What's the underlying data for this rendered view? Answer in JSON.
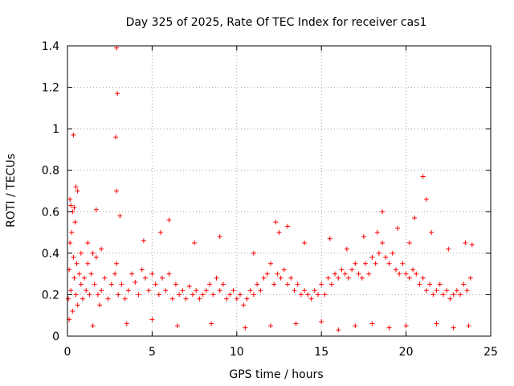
{
  "chart_data": {
    "type": "scatter",
    "title": "Day 325 of 2025, Rate Of TEC Index for receiver cas1",
    "xlabel": "GPS time / hours",
    "ylabel": "ROTI / TECUs",
    "xlim": [
      0,
      25
    ],
    "ylim": [
      0,
      1.4
    ],
    "xticks": [
      0,
      5,
      10,
      15,
      20,
      25
    ],
    "yticks": [
      0,
      0.2,
      0.4,
      0.6,
      0.8,
      1,
      1.2,
      1.4
    ],
    "xtick_labels": [
      "0",
      "5",
      "10",
      "15",
      "20",
      "25"
    ],
    "ytick_labels": [
      "0",
      "0.2",
      "0.4",
      "0.6",
      "0.8",
      "1",
      "1.2",
      "1.4"
    ],
    "grid": true,
    "marker": "+",
    "color": "#ff0000",
    "series": [
      {
        "x": [
          0.05,
          0.1,
          0.15,
          0.2,
          0.25,
          0.3,
          0.35,
          0.4,
          0.45,
          0.5,
          0.55,
          0.6,
          0.7,
          0.8,
          0.9,
          1.0,
          1.1,
          1.2,
          1.3,
          1.4,
          1.5,
          1.6,
          1.7,
          1.8,
          1.9,
          2.0,
          2.2,
          2.4,
          2.6,
          2.8,
          2.9,
          3.0,
          3.2,
          3.4,
          3.6,
          3.8,
          4.0,
          4.2,
          4.4,
          4.6,
          4.8,
          5.0,
          5.2,
          5.4,
          5.6,
          5.8,
          6.0,
          6.2,
          6.4,
          6.6,
          6.8,
          7.0,
          7.2,
          7.4,
          7.6,
          7.8,
          8.0,
          8.2,
          8.4,
          8.6,
          8.8,
          9.0,
          9.2,
          9.4,
          9.6,
          9.8,
          10.0,
          10.2,
          10.4,
          10.6,
          10.8,
          11.0,
          11.2,
          11.4,
          11.6,
          11.8,
          12.0,
          12.2,
          12.4,
          12.6,
          12.8,
          13.0,
          13.2,
          13.4,
          13.6,
          13.8,
          14.0,
          14.2,
          14.4,
          14.6,
          14.8,
          15.0,
          15.2,
          15.4,
          15.6,
          15.8,
          16.0,
          16.2,
          16.4,
          16.6,
          16.8,
          17.0,
          17.2,
          17.4,
          17.6,
          17.8,
          18.0,
          18.2,
          18.4,
          18.6,
          18.8,
          19.0,
          19.2,
          19.4,
          19.6,
          19.8,
          20.0,
          20.2,
          20.4,
          20.6,
          20.8,
          21.0,
          21.2,
          21.4,
          21.6,
          21.8,
          22.0,
          22.2,
          22.4,
          22.6,
          22.8,
          23.0,
          23.2,
          23.4,
          23.6,
          23.8,
          0.35,
          0.5,
          2.9,
          2.95,
          2.85,
          2.9,
          21.0,
          21.2,
          0.15,
          0.3,
          0.6,
          1.7,
          6.0,
          12.3,
          13.0,
          18.6,
          20.5,
          0.2,
          0.4,
          0.8,
          1.2,
          2.0,
          3.1,
          4.5,
          5.5,
          7.5,
          9.0,
          11.0,
          12.5,
          14.0,
          15.5,
          16.5,
          17.5,
          18.3,
          19.5,
          20.2,
          21.5,
          22.5,
          23.5,
          23.9,
          0.1,
          1.5,
          3.5,
          5.0,
          6.5,
          8.5,
          10.5,
          12.0,
          13.5,
          15.0,
          16.0,
          17.0,
          18.0,
          19.0,
          20.0,
          21.8,
          22.8,
          23.7
        ],
        "y": [
          0.18,
          0.32,
          0.45,
          0.22,
          0.5,
          0.12,
          0.38,
          0.28,
          0.55,
          0.2,
          0.35,
          0.15,
          0.3,
          0.25,
          0.18,
          0.28,
          0.22,
          0.35,
          0.2,
          0.3,
          0.4,
          0.25,
          0.38,
          0.2,
          0.15,
          0.22,
          0.28,
          0.18,
          0.25,
          0.3,
          0.35,
          0.2,
          0.25,
          0.18,
          0.22,
          0.3,
          0.26,
          0.2,
          0.32,
          0.28,
          0.22,
          0.3,
          0.25,
          0.2,
          0.28,
          0.22,
          0.3,
          0.18,
          0.25,
          0.2,
          0.22,
          0.18,
          0.24,
          0.2,
          0.22,
          0.18,
          0.2,
          0.22,
          0.25,
          0.2,
          0.28,
          0.22,
          0.25,
          0.18,
          0.2,
          0.22,
          0.18,
          0.2,
          0.15,
          0.18,
          0.22,
          0.2,
          0.25,
          0.22,
          0.28,
          0.3,
          0.35,
          0.25,
          0.3,
          0.28,
          0.32,
          0.25,
          0.28,
          0.22,
          0.25,
          0.2,
          0.22,
          0.2,
          0.18,
          0.22,
          0.2,
          0.25,
          0.2,
          0.28,
          0.25,
          0.3,
          0.28,
          0.32,
          0.3,
          0.28,
          0.32,
          0.35,
          0.3,
          0.28,
          0.35,
          0.3,
          0.38,
          0.35,
          0.4,
          0.45,
          0.38,
          0.35,
          0.4,
          0.32,
          0.3,
          0.35,
          0.3,
          0.28,
          0.32,
          0.3,
          0.25,
          0.28,
          0.22,
          0.25,
          0.2,
          0.22,
          0.25,
          0.2,
          0.22,
          0.18,
          0.2,
          0.22,
          0.2,
          0.25,
          0.22,
          0.28,
          0.97,
          0.72,
          1.39,
          1.17,
          0.96,
          0.7,
          0.77,
          0.66,
          0.66,
          0.6,
          0.7,
          0.61,
          0.56,
          0.55,
          0.53,
          0.6,
          0.57,
          0.63,
          0.62,
          0.4,
          0.45,
          0.42,
          0.58,
          0.46,
          0.5,
          0.45,
          0.48,
          0.4,
          0.5,
          0.45,
          0.47,
          0.42,
          0.48,
          0.5,
          0.52,
          0.45,
          0.5,
          0.42,
          0.45,
          0.44,
          0.08,
          0.05,
          0.06,
          0.08,
          0.05,
          0.06,
          0.04,
          0.05,
          0.06,
          0.07,
          0.03,
          0.05,
          0.06,
          0.04,
          0.05,
          0.06,
          0.04,
          0.05
        ]
      }
    ]
  }
}
